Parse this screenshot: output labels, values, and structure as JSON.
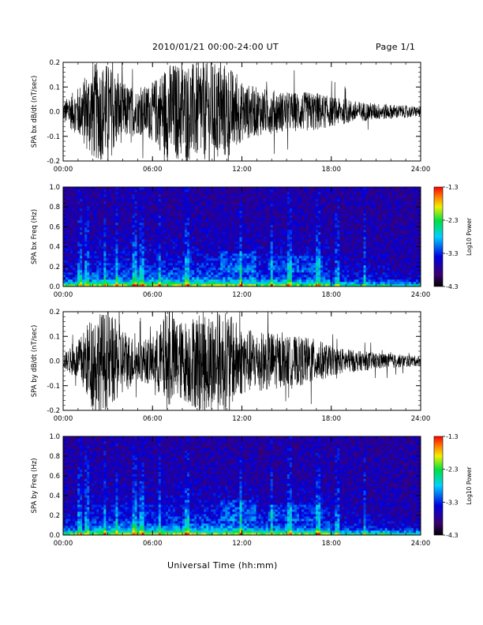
{
  "header": {
    "title": "2010/01/21  00:00-24:00 UT",
    "page": "Page 1/1"
  },
  "footer": {
    "xaxis_title": "Universal Time (hh:mm)"
  },
  "colors": {
    "trace": "#000000",
    "spec_background": "#2a0a4a",
    "colorbar_stops": [
      "#000000",
      "#3a0070",
      "#0000e0",
      "#00d0ff",
      "#00e040",
      "#f0f000",
      "#ff8000",
      "#ff0000"
    ]
  },
  "chart_data": [
    {
      "type": "line",
      "panel": "bx-waveform",
      "ylabel": "SPA bx dB/dt (nT/sec)",
      "xlim": [
        0,
        24
      ],
      "ylim": [
        -0.2,
        0.2
      ],
      "xticks": [
        "00:00",
        "06:00",
        "12:00",
        "18:00",
        "24:00"
      ],
      "yticks": [
        "-0.2",
        "-0.1",
        "0.0",
        "0.1",
        "0.2"
      ],
      "envelope": {
        "hours": [
          0,
          1,
          2,
          3,
          4,
          5,
          6,
          7,
          8,
          9,
          10,
          11,
          12,
          13,
          14,
          15,
          16,
          17,
          18,
          19,
          20,
          21,
          22,
          23,
          24
        ],
        "amplitude": [
          0.04,
          0.1,
          0.2,
          0.2,
          0.12,
          0.09,
          0.12,
          0.2,
          0.2,
          0.2,
          0.2,
          0.2,
          0.12,
          0.1,
          0.09,
          0.08,
          0.08,
          0.08,
          0.06,
          0.05,
          0.04,
          0.035,
          0.03,
          0.025,
          0.02
        ]
      }
    },
    {
      "type": "heatmap",
      "panel": "bx-spectrogram",
      "ylabel": "SPA bx Freq (Hz)",
      "xlim": [
        0,
        24
      ],
      "ylim": [
        0,
        1.0
      ],
      "xticks": [
        "00:00",
        "06:00",
        "12:00",
        "18:00",
        "24:00"
      ],
      "yticks": [
        "0.0",
        "0.2",
        "0.4",
        "0.6",
        "0.8",
        "1.0"
      ],
      "colorbar": {
        "label": "Log10 Power",
        "range": [
          -4.3,
          -1.3
        ],
        "ticks": [
          "-1.3",
          "-2.3",
          "-3.3",
          "-4.3"
        ]
      },
      "bright_columns_hours": [
        1.1,
        1.6,
        2.8,
        3.6,
        4.8,
        5.3,
        6.5,
        8.3,
        11.9,
        14.0,
        15.2,
        17.1,
        18.4,
        20.2
      ]
    },
    {
      "type": "line",
      "panel": "by-waveform",
      "ylabel": "SPA by dB/dt (nT/sec)",
      "xlim": [
        0,
        24
      ],
      "ylim": [
        -0.2,
        0.2
      ],
      "xticks": [
        "00:00",
        "06:00",
        "12:00",
        "18:00",
        "24:00"
      ],
      "yticks": [
        "-0.2",
        "-0.1",
        "0.0",
        "0.1",
        "0.2"
      ],
      "envelope": {
        "hours": [
          0,
          1,
          2,
          3,
          4,
          5,
          6,
          7,
          8,
          9,
          10,
          11,
          12,
          13,
          14,
          15,
          16,
          17,
          18,
          19,
          20,
          21,
          22,
          23,
          24
        ],
        "amplitude": [
          0.03,
          0.08,
          0.2,
          0.2,
          0.14,
          0.08,
          0.1,
          0.2,
          0.16,
          0.2,
          0.2,
          0.2,
          0.14,
          0.12,
          0.12,
          0.1,
          0.1,
          0.09,
          0.06,
          0.05,
          0.04,
          0.035,
          0.03,
          0.025,
          0.02
        ]
      }
    },
    {
      "type": "heatmap",
      "panel": "by-spectrogram",
      "ylabel": "SPA by Freq (Hz)",
      "xlim": [
        0,
        24
      ],
      "ylim": [
        0,
        1.0
      ],
      "xticks": [
        "00:00",
        "06:00",
        "12:00",
        "18:00",
        "24:00"
      ],
      "yticks": [
        "0.0",
        "0.2",
        "0.4",
        "0.6",
        "0.8",
        "1.0"
      ],
      "colorbar": {
        "label": "Log10 Power",
        "range": [
          -4.3,
          -1.3
        ],
        "ticks": [
          "-1.3",
          "-2.3",
          "-3.3",
          "-4.3"
        ]
      },
      "bright_columns_hours": [
        1.1,
        1.6,
        2.8,
        3.6,
        4.8,
        5.3,
        6.5,
        8.3,
        11.9,
        14.0,
        15.2,
        17.1,
        18.4,
        20.2
      ]
    }
  ]
}
